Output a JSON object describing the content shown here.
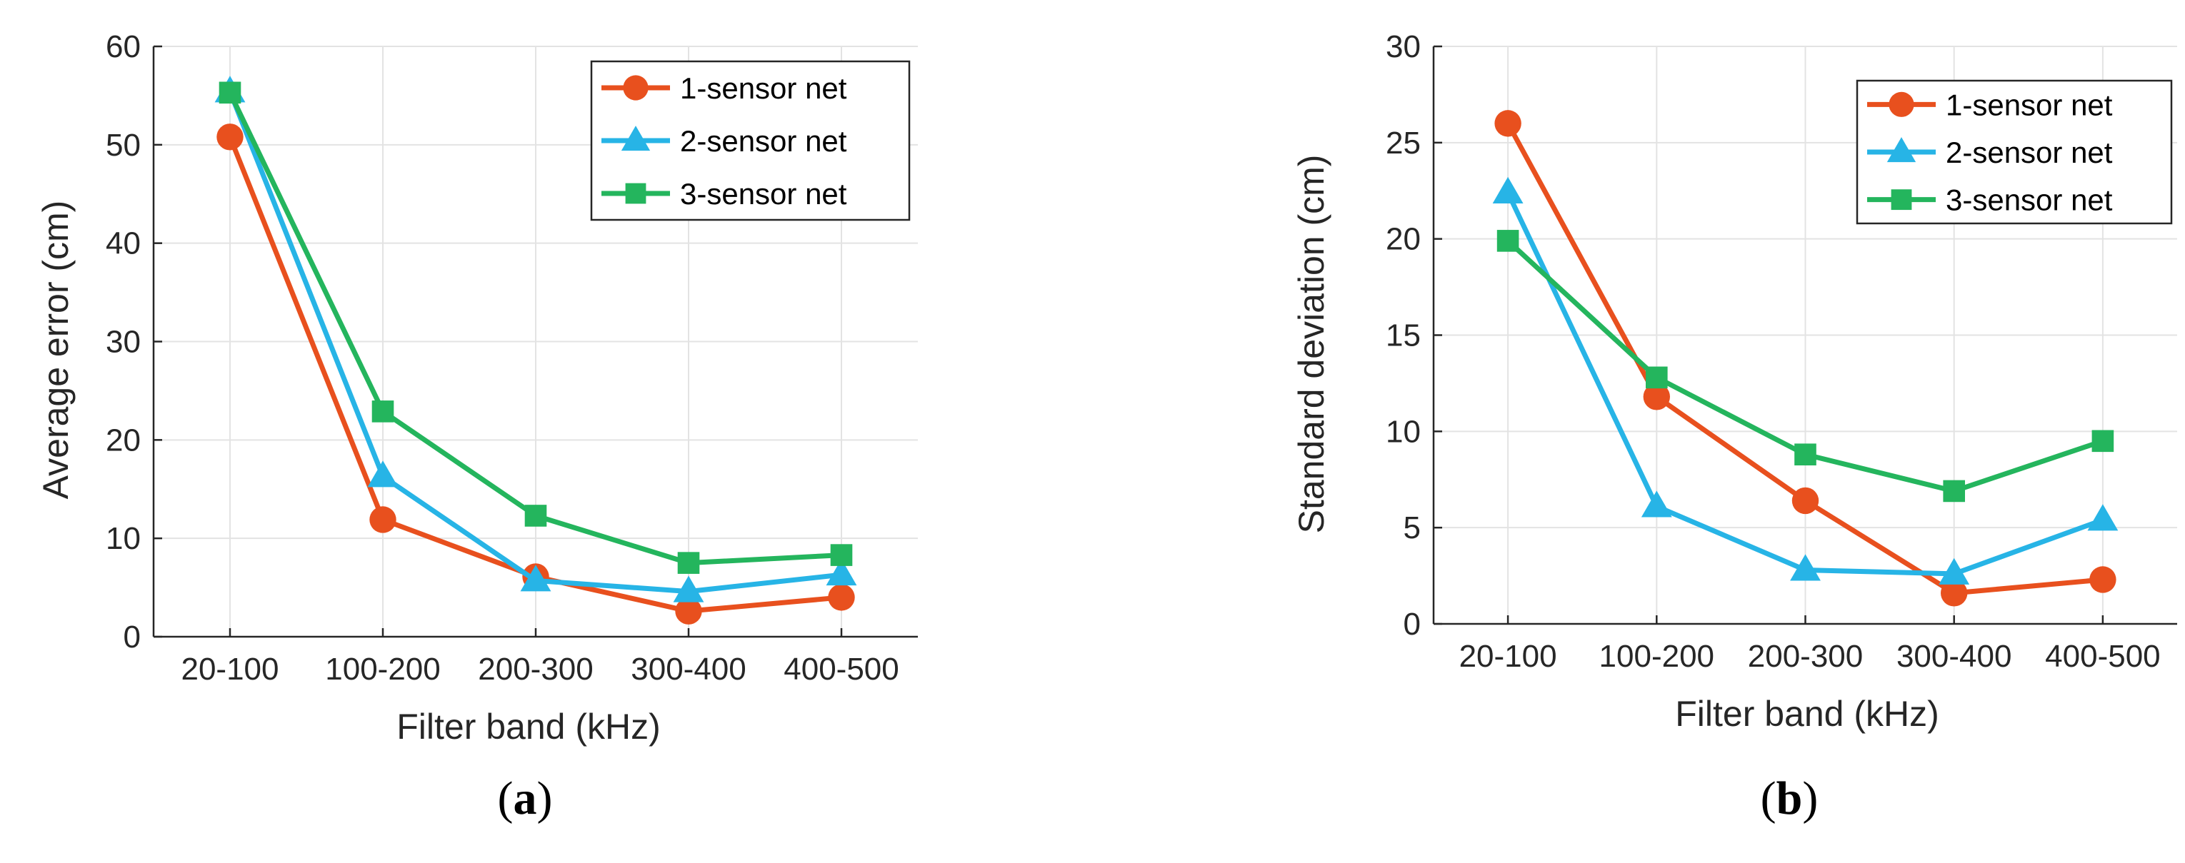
{
  "chart_data": [
    {
      "panel": "a",
      "type": "line",
      "caption": "(a)",
      "caption_open": "(",
      "caption_letter": "a",
      "caption_close": ")",
      "xlabel": "Filter band (kHz)",
      "ylabel": "Average error (cm)",
      "ylim": [
        0,
        60
      ],
      "yticks": [
        0,
        10,
        20,
        30,
        40,
        50,
        60
      ],
      "categories": [
        "20-100",
        "100-200",
        "200-300",
        "300-400",
        "400-500"
      ],
      "legend_position": "top-right",
      "grid": true,
      "series": [
        {
          "name": "1-sensor net",
          "marker": "circle",
          "color": "#E8501E",
          "values": [
            50.8,
            11.9,
            6.1,
            2.6,
            4.0
          ]
        },
        {
          "name": "2-sensor net",
          "marker": "triangle",
          "color": "#27B4E6",
          "values": [
            55.4,
            16.3,
            5.7,
            4.6,
            6.3
          ]
        },
        {
          "name": "3-sensor net",
          "marker": "square",
          "color": "#24B55D",
          "values": [
            55.3,
            22.9,
            12.3,
            7.5,
            8.3
          ]
        }
      ]
    },
    {
      "panel": "b",
      "type": "line",
      "caption": "(b)",
      "caption_open": "(",
      "caption_letter": "b",
      "caption_close": ")",
      "xlabel": "Filter band (kHz)",
      "ylabel": "Standard deviation  (cm)",
      "ylim": [
        0,
        30
      ],
      "yticks": [
        0,
        5,
        10,
        15,
        20,
        25,
        30
      ],
      "categories": [
        "20-100",
        "100-200",
        "200-300",
        "300-400",
        "400-500"
      ],
      "legend_position": "top-right",
      "grid": true,
      "series": [
        {
          "name": "1-sensor net",
          "marker": "circle",
          "color": "#E8501E",
          "values": [
            26.0,
            11.8,
            6.4,
            1.6,
            2.3
          ]
        },
        {
          "name": "2-sensor net",
          "marker": "triangle",
          "color": "#27B4E6",
          "values": [
            22.4,
            6.1,
            2.8,
            2.6,
            5.4
          ]
        },
        {
          "name": "3-sensor net",
          "marker": "square",
          "color": "#24B55D",
          "values": [
            19.9,
            12.8,
            8.8,
            6.9,
            9.5
          ]
        }
      ]
    }
  ]
}
